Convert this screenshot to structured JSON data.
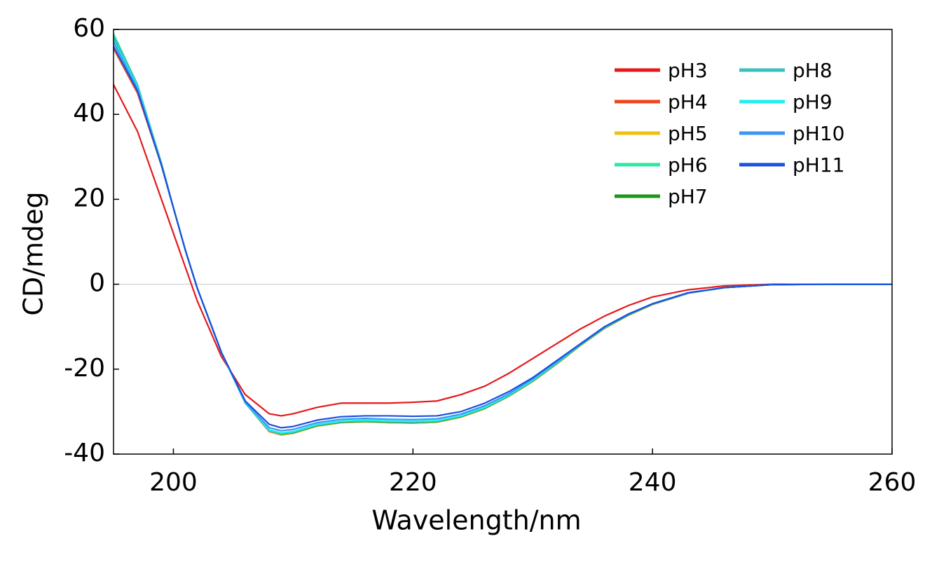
{
  "chart_data": {
    "type": "line",
    "xlabel": "Wavelength/nm",
    "ylabel": "CD/mdeg",
    "x": [
      195,
      197,
      199,
      200,
      201,
      202,
      204,
      206,
      208,
      209,
      210,
      212,
      214,
      216,
      218,
      220,
      222,
      224,
      226,
      228,
      230,
      232,
      234,
      236,
      238,
      240,
      243,
      246,
      250,
      255,
      260
    ],
    "series": [
      {
        "name": "pH3",
        "color": "#e5191b",
        "values": [
          47,
          36,
          20,
          12,
          4,
          -4,
          -17,
          -26,
          -30.5,
          -31,
          -30.5,
          -29,
          -28,
          -28,
          -28,
          -27.8,
          -27.5,
          -26,
          -24,
          -21,
          -17.5,
          -14,
          -10.5,
          -7.5,
          -5,
          -3,
          -1.3,
          -0.4,
          0,
          0,
          0
        ]
      },
      {
        "name": "pH4",
        "color": "#f0451a",
        "values": [
          55.5,
          45,
          28,
          18,
          8,
          -1,
          -16,
          -28,
          -34.7,
          -35.5,
          -35.1,
          -33.4,
          -32.6,
          -32.4,
          -32.6,
          -32.7,
          -32.5,
          -31.3,
          -29.3,
          -26.4,
          -22.9,
          -18.8,
          -14.4,
          -10.4,
          -7.3,
          -4.8,
          -2.1,
          -0.8,
          -0.1,
          0,
          0
        ]
      },
      {
        "name": "pH5",
        "color": "#f2c014",
        "values": [
          56,
          45.5,
          28,
          18,
          8,
          -1,
          -16,
          -28,
          -34.6,
          -35.5,
          -35.1,
          -33.4,
          -32.6,
          -32.4,
          -32.6,
          -32.7,
          -32.5,
          -31.3,
          -29.3,
          -26.4,
          -22.9,
          -18.8,
          -14.4,
          -10.4,
          -7.3,
          -4.8,
          -2.1,
          -0.8,
          -0.1,
          0,
          0
        ]
      },
      {
        "name": "pH6",
        "color": "#2ee8a0",
        "values": [
          59,
          47,
          28.5,
          18,
          8,
          -1,
          -16,
          -28,
          -34.5,
          -35.3,
          -35,
          -33.3,
          -32.5,
          -32.3,
          -32.5,
          -32.6,
          -32.4,
          -31.2,
          -29.2,
          -26.3,
          -22.8,
          -18.7,
          -14.3,
          -10.3,
          -7.2,
          -4.7,
          -2.1,
          -0.8,
          -0.1,
          0,
          0
        ]
      },
      {
        "name": "pH7",
        "color": "#1a961a",
        "values": [
          58,
          46.5,
          28.5,
          18,
          8,
          -1,
          -16,
          -28,
          -34.5,
          -35.3,
          -35,
          -33.3,
          -32.5,
          -32.3,
          -32.5,
          -32.6,
          -32.4,
          -31.2,
          -29.2,
          -26.3,
          -22.8,
          -18.7,
          -14.3,
          -10.3,
          -7.2,
          -4.7,
          -2.1,
          -0.8,
          -0.1,
          0,
          0
        ]
      },
      {
        "name": "pH8",
        "color": "#3cbfc0",
        "values": [
          58.5,
          47,
          28.5,
          18,
          8,
          -1,
          -16,
          -28,
          -34.5,
          -35.2,
          -34.9,
          -33.2,
          -32.4,
          -32.2,
          -32.4,
          -32.5,
          -32.3,
          -31.1,
          -29.1,
          -26.2,
          -22.7,
          -18.6,
          -14.2,
          -10.2,
          -7.1,
          -4.7,
          -2.1,
          -0.8,
          -0.1,
          0,
          0
        ]
      },
      {
        "name": "pH9",
        "color": "#1ef0f0",
        "values": [
          57.5,
          46.5,
          28,
          18,
          8,
          -1,
          -16,
          -28,
          -34.3,
          -35,
          -34.7,
          -33,
          -32.2,
          -32,
          -32.2,
          -32.3,
          -32.1,
          -31,
          -29,
          -26.1,
          -22.6,
          -18.5,
          -14.2,
          -10.2,
          -7.1,
          -4.6,
          -2,
          -0.8,
          -0.1,
          0,
          0
        ]
      },
      {
        "name": "pH10",
        "color": "#3c96f0",
        "values": [
          57,
          46,
          28,
          18,
          8,
          -1,
          -16,
          -27.8,
          -33.8,
          -34.5,
          -34.2,
          -32.6,
          -31.8,
          -31.6,
          -31.8,
          -31.9,
          -31.7,
          -30.6,
          -28.6,
          -25.8,
          -22.3,
          -18.3,
          -14.1,
          -10.1,
          -7.1,
          -4.6,
          -2,
          -0.8,
          -0.1,
          0,
          0
        ]
      },
      {
        "name": "pH11",
        "color": "#1a50e0",
        "values": [
          56,
          45.5,
          28,
          18,
          8,
          -1,
          -16,
          -27.5,
          -33,
          -33.8,
          -33.5,
          -32,
          -31.2,
          -31,
          -31,
          -31.1,
          -31,
          -30,
          -28,
          -25.3,
          -22,
          -18,
          -14,
          -10,
          -7,
          -4.6,
          -2,
          -0.8,
          -0.1,
          0,
          0
        ]
      }
    ],
    "xlim": [
      195,
      260
    ],
    "xticks": [
      200,
      220,
      240,
      260
    ],
    "ylim": [
      -40,
      60
    ],
    "yticks": [
      -40,
      -20,
      0,
      20,
      40,
      60
    ],
    "hlines": [
      0
    ],
    "legend": "upper right",
    "legend_columns": 2
  }
}
